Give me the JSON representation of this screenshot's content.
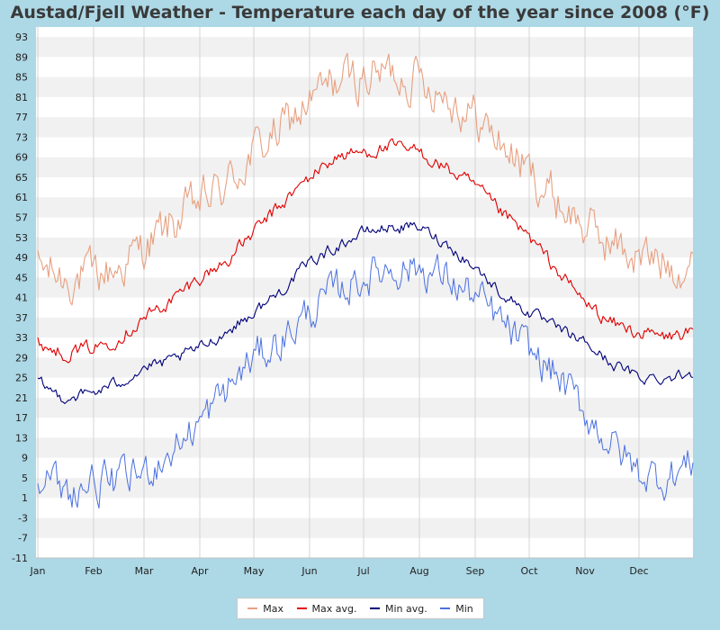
{
  "chart_data": {
    "type": "line",
    "title": "Austad/Fjell Weather - Temperature each day of the year since 2008 (°F)",
    "xlabel": "",
    "ylabel": "",
    "xlim": [
      0,
      365
    ],
    "ylim": [
      -11,
      95
    ],
    "x_ticks": [
      "Jan",
      "Feb",
      "Mar",
      "Apr",
      "May",
      "Jun",
      "Jul",
      "Aug",
      "Sep",
      "Oct",
      "Nov",
      "Dec"
    ],
    "y_ticks": [
      -11,
      -7,
      -3,
      1,
      5,
      9,
      13,
      17,
      21,
      25,
      29,
      33,
      37,
      41,
      45,
      49,
      53,
      57,
      61,
      65,
      69,
      73,
      77,
      81,
      85,
      89,
      93
    ],
    "grid": "horizontal bands and vertical month lines",
    "legend_position": "bottom-center",
    "x": [
      1,
      15,
      32,
      46,
      60,
      74,
      91,
      105,
      121,
      135,
      152,
      166,
      182,
      196,
      213,
      227,
      244,
      258,
      274,
      288,
      305,
      319,
      335,
      349,
      365
    ],
    "series": [
      {
        "name": "Max",
        "color": "#e8a080",
        "width": 1.1,
        "noise": 3.8,
        "values": [
          47,
          45,
          45,
          47,
          51,
          55,
          60,
          63,
          70,
          74,
          80,
          84,
          85,
          86,
          85,
          82,
          77,
          72,
          66,
          61,
          55,
          52,
          49,
          48,
          48
        ]
      },
      {
        "name": "Max avg.",
        "color": "#e00000",
        "width": 1.1,
        "noise": 1.2,
        "values": [
          32,
          30,
          31,
          33,
          37,
          40,
          45,
          48,
          54,
          59,
          65,
          69,
          70,
          71,
          70,
          67,
          63,
          58,
          53,
          47,
          40,
          36,
          34,
          33,
          34
        ]
      },
      {
        "name": "Min avg.",
        "color": "#00007a",
        "width": 1.1,
        "noise": 1.0,
        "values": [
          24,
          21,
          22,
          24,
          27,
          28,
          31,
          34,
          38,
          42,
          48,
          51,
          54,
          55,
          55,
          52,
          47,
          42,
          38,
          35,
          32,
          28,
          25,
          25,
          26
        ]
      },
      {
        "name": "Min",
        "color": "#4a70e0",
        "width": 1.0,
        "noise": 3.2,
        "values": [
          7,
          2,
          4,
          4,
          6,
          10,
          16,
          22,
          29,
          32,
          38,
          42,
          45,
          47,
          47,
          45,
          41,
          36,
          30,
          26,
          18,
          12,
          6,
          5,
          8
        ]
      }
    ]
  }
}
